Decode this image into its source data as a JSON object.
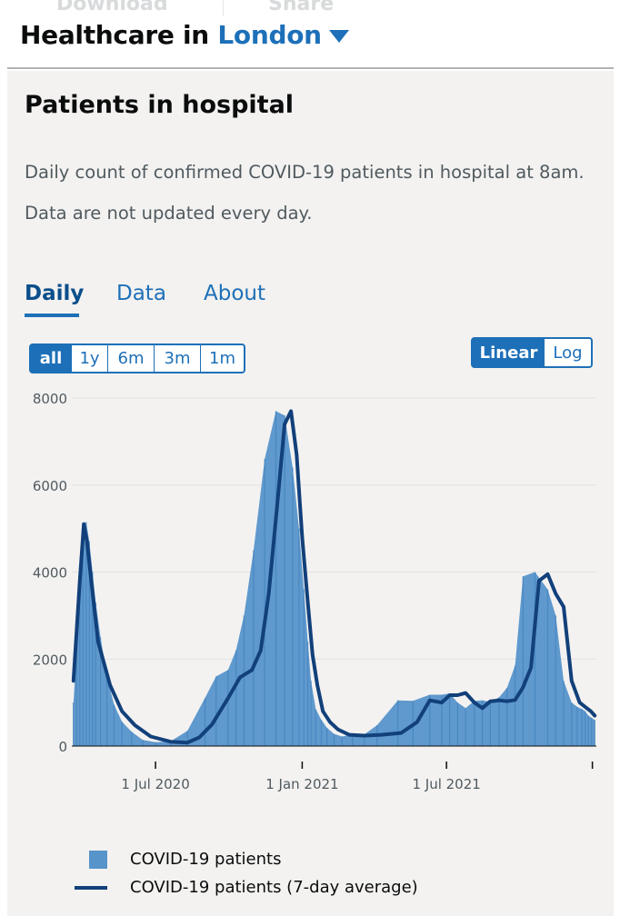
{
  "top_actions": {
    "download_label": "Download",
    "share_label": "Share"
  },
  "header": {
    "prefix": "Healthcare in",
    "area": "London"
  },
  "card": {
    "title": "Patients in hospital",
    "description_1": "Daily count of confirmed COVID-19 patients in hospital at 8am.",
    "description_2": "Data are not updated every day."
  },
  "tabs": [
    {
      "label": "Daily",
      "active": true
    },
    {
      "label": "Data",
      "active": false
    },
    {
      "label": "About",
      "active": false
    }
  ],
  "range_buttons": [
    {
      "label": "all",
      "active": true
    },
    {
      "label": "1y",
      "active": false
    },
    {
      "label": "6m",
      "active": false
    },
    {
      "label": "3m",
      "active": false
    },
    {
      "label": "1m",
      "active": false
    }
  ],
  "scale_buttons": [
    {
      "label": "Linear",
      "active": true
    },
    {
      "label": "Log",
      "active": false
    }
  ],
  "colors": {
    "bar": "#5694ca",
    "line": "#12407a",
    "accent": "#1d70b8",
    "card": "#f3f2f1"
  },
  "chart_data": {
    "type": "area",
    "ylim": [
      0,
      8000
    ],
    "y_ticks": [
      0,
      2000,
      4000,
      6000,
      8000
    ],
    "y_tick_labels": [
      "0",
      "2000",
      "4000",
      "6000",
      "8000"
    ],
    "x_ticks": [
      "2020-07-01",
      "2021-01-01",
      "2021-07-01",
      "2021-12-31"
    ],
    "x_tick_labels": [
      "1 Jul 2020",
      "1 Jan 2021",
      "1 Jul 2021",
      ""
    ],
    "grid": true,
    "legend_position": "bottom",
    "series": [
      {
        "name": "COVID-19 patients",
        "style": "bar",
        "x": [
          "2020-03-20",
          "2020-03-24",
          "2020-03-28",
          "2020-04-01",
          "2020-04-05",
          "2020-04-09",
          "2020-04-13",
          "2020-04-17",
          "2020-04-23",
          "2020-05-01",
          "2020-05-10",
          "2020-05-20",
          "2020-06-01",
          "2020-06-15",
          "2020-07-01",
          "2020-07-20",
          "2020-08-10",
          "2020-09-01",
          "2020-09-15",
          "2020-09-30",
          "2020-10-10",
          "2020-10-20",
          "2020-11-01",
          "2020-11-15",
          "2020-11-29",
          "2020-12-10",
          "2020-12-20",
          "2020-12-28",
          "2021-01-03",
          "2021-01-08",
          "2021-01-12",
          "2021-01-18",
          "2021-01-25",
          "2021-02-01",
          "2021-02-10",
          "2021-02-20",
          "2021-03-05",
          "2021-03-20",
          "2021-04-05",
          "2021-05-01",
          "2021-05-20",
          "2021-06-10",
          "2021-06-25",
          "2021-07-05",
          "2021-07-15",
          "2021-07-25",
          "2021-08-05",
          "2021-08-15",
          "2021-08-25",
          "2021-09-05",
          "2021-09-15",
          "2021-09-25",
          "2021-10-05",
          "2021-10-20",
          "2021-11-05",
          "2021-11-15",
          "2021-11-25",
          "2021-12-05",
          "2021-12-12",
          "2021-12-18",
          "2021-12-22",
          "2021-12-26",
          "2021-12-30",
          "2022-01-03"
        ],
        "values": [
          1000,
          2200,
          3800,
          4900,
          5150,
          4700,
          4000,
          3300,
          2500,
          1600,
          950,
          560,
          330,
          140,
          90,
          110,
          350,
          1100,
          1600,
          1750,
          2200,
          3000,
          4500,
          6600,
          7700,
          7600,
          6400,
          5000,
          3600,
          2400,
          1500,
          850,
          600,
          420,
          280,
          220,
          270,
          270,
          480,
          1050,
          1040,
          1180,
          1180,
          1210,
          1000,
          870,
          1040,
          1050,
          1020,
          1120,
          1340,
          1850,
          3900,
          4000,
          3600,
          3000,
          1500,
          1000,
          900,
          850,
          800,
          700,
          650,
          600
        ],
        "values_note": ""
      },
      {
        "name": "COVID-19 patients (7-day average)",
        "style": "line",
        "x": [
          "2020-03-20",
          "2020-03-28",
          "2020-04-02",
          "2020-04-06",
          "2020-04-12",
          "2020-04-20",
          "2020-05-05",
          "2020-05-20",
          "2020-06-05",
          "2020-06-25",
          "2020-07-20",
          "2020-08-10",
          "2020-08-25",
          "2020-09-10",
          "2020-09-30",
          "2020-10-15",
          "2020-10-30",
          "2020-11-10",
          "2020-11-20",
          "2020-12-01",
          "2020-12-10",
          "2020-12-18",
          "2020-12-25",
          "2021-01-01",
          "2021-01-08",
          "2021-01-14",
          "2021-01-20",
          "2021-01-27",
          "2021-02-05",
          "2021-02-15",
          "2021-03-01",
          "2021-03-20",
          "2021-04-10",
          "2021-05-05",
          "2021-05-25",
          "2021-06-10",
          "2021-06-25",
          "2021-07-05",
          "2021-07-15",
          "2021-07-25",
          "2021-08-05",
          "2021-08-15",
          "2021-08-25",
          "2021-09-05",
          "2021-09-15",
          "2021-09-25",
          "2021-10-05",
          "2021-10-15",
          "2021-10-25",
          "2021-11-05",
          "2021-11-15",
          "2021-11-25",
          "2021-12-05",
          "2021-12-15",
          "2021-12-22",
          "2021-12-29",
          "2022-01-03"
        ],
        "values": [
          1500,
          3800,
          5100,
          4700,
          3700,
          2400,
          1400,
          800,
          480,
          220,
          100,
          80,
          200,
          500,
          1100,
          1580,
          1750,
          2200,
          3500,
          5600,
          7400,
          7700,
          6700,
          4800,
          3300,
          2100,
          1400,
          800,
          550,
          380,
          260,
          240,
          260,
          300,
          550,
          1050,
          1000,
          1170,
          1170,
          1220,
          1000,
          870,
          1030,
          1050,
          1030,
          1060,
          1350,
          1800,
          3800,
          3950,
          3500,
          3200,
          1500,
          1000,
          900,
          800,
          700
        ]
      }
    ]
  }
}
